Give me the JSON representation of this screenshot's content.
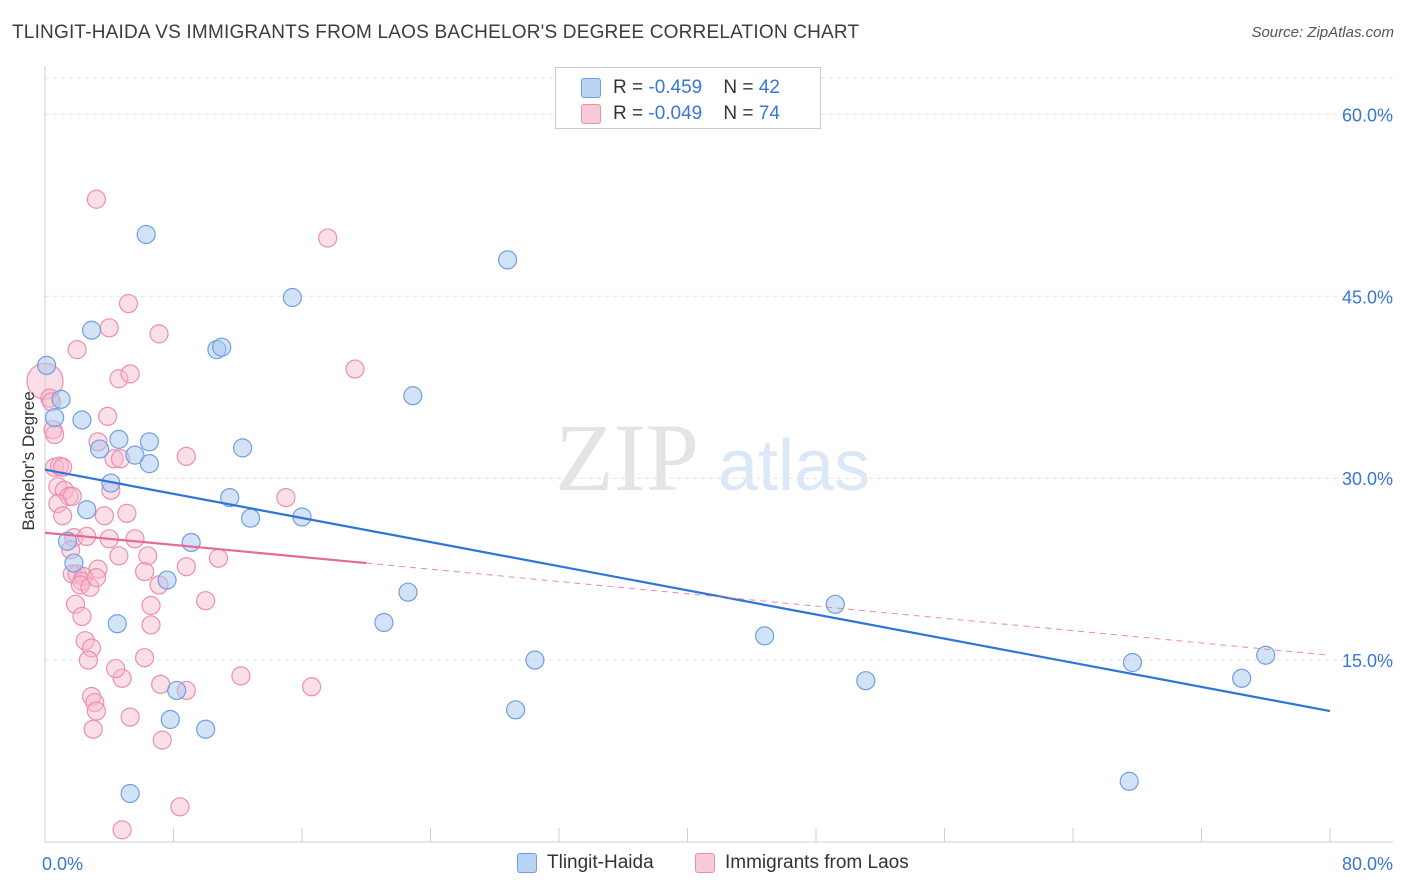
{
  "title": "TLINGIT-HAIDA VS IMMIGRANTS FROM LAOS BACHELOR'S DEGREE CORRELATION CHART",
  "source": "Source: ZipAtlas.com",
  "watermark": {
    "zip": "ZIP",
    "atlas": "atlas"
  },
  "stats_legend": [
    {
      "r_label": "R = ",
      "r_value": "-0.459",
      "n_label": "N = ",
      "n_value": "42"
    },
    {
      "r_label": "R = ",
      "r_value": "-0.049",
      "n_label": "N = ",
      "n_value": "74"
    }
  ],
  "chart_data": {
    "type": "scatter",
    "title": "TLINGIT-HAIDA VS IMMIGRANTS FROM LAOS BACHELOR'S DEGREE CORRELATION CHART",
    "xlabel": "",
    "ylabel": "Bachelor's Degree",
    "xlim": [
      0,
      80
    ],
    "ylim": [
      0,
      63
    ],
    "x_tick_labels": [
      "0.0%",
      "80.0%"
    ],
    "y_ticks": [
      15,
      30,
      45,
      60
    ],
    "y_tick_labels": [
      "15.0%",
      "30.0%",
      "45.0%",
      "60.0%"
    ],
    "grid": true,
    "legend_position": "bottom-center",
    "colors": {
      "tlingit_fill": "#a8c8f0",
      "tlingit_stroke": "#6f9fe0",
      "tlingit_line": "#2f74d6",
      "laos_fill": "#f6b8cb",
      "laos_stroke": "#ec8fae",
      "laos_line": "#e56a95",
      "axis_label": "#3a76d6"
    },
    "series": [
      {
        "name": "Tlingit-Haida",
        "color": "#6f9fe0",
        "trend": {
          "x": [
            0,
            80
          ],
          "y": [
            30.7,
            10.8
          ],
          "style": "solid"
        },
        "points": [
          [
            0.1,
            39.3
          ],
          [
            1.0,
            36.5
          ],
          [
            0.6,
            35.0
          ],
          [
            2.3,
            34.8
          ],
          [
            3.4,
            32.4
          ],
          [
            4.6,
            33.2
          ],
          [
            5.6,
            31.9
          ],
          [
            6.5,
            33.0
          ],
          [
            6.5,
            31.2
          ],
          [
            4.1,
            29.6
          ],
          [
            2.6,
            27.4
          ],
          [
            1.4,
            24.8
          ],
          [
            1.8,
            23.0
          ],
          [
            2.9,
            42.2
          ],
          [
            6.3,
            50.1
          ],
          [
            10.7,
            40.6
          ],
          [
            11.0,
            40.8
          ],
          [
            12.3,
            32.5
          ],
          [
            15.4,
            44.9
          ],
          [
            11.5,
            28.4
          ],
          [
            12.8,
            26.7
          ],
          [
            16.0,
            26.8
          ],
          [
            9.1,
            24.7
          ],
          [
            7.6,
            21.6
          ],
          [
            4.5,
            18.0
          ],
          [
            8.2,
            12.5
          ],
          [
            7.8,
            10.1
          ],
          [
            10.0,
            9.3
          ],
          [
            5.3,
            4.0
          ],
          [
            22.9,
            36.8
          ],
          [
            28.8,
            48.0
          ],
          [
            22.6,
            20.6
          ],
          [
            21.1,
            18.1
          ],
          [
            30.5,
            15.0
          ],
          [
            29.3,
            10.9
          ],
          [
            44.8,
            17.0
          ],
          [
            49.2,
            19.6
          ],
          [
            51.1,
            13.3
          ],
          [
            67.7,
            14.8
          ],
          [
            67.5,
            5.0
          ],
          [
            74.5,
            13.5
          ],
          [
            76.0,
            15.4
          ]
        ]
      },
      {
        "name": "Immigrants from Laos",
        "color": "#ec8fae",
        "trend": {
          "x": [
            0,
            20
          ],
          "y": [
            25.5,
            23.0
          ],
          "style": "solid",
          "dashed_x": [
            20,
            80
          ],
          "dashed_y": [
            23.0,
            15.4
          ]
        },
        "points": [
          [
            0.0,
            38.0
          ],
          [
            0.3,
            36.6
          ],
          [
            0.4,
            36.3
          ],
          [
            0.5,
            34.0
          ],
          [
            0.6,
            33.6
          ],
          [
            0.6,
            30.9
          ],
          [
            0.9,
            31.0
          ],
          [
            1.1,
            30.9
          ],
          [
            0.8,
            29.3
          ],
          [
            1.2,
            29.0
          ],
          [
            1.5,
            28.5
          ],
          [
            1.7,
            28.5
          ],
          [
            0.8,
            27.9
          ],
          [
            1.1,
            26.9
          ],
          [
            1.8,
            25.1
          ],
          [
            2.6,
            25.2
          ],
          [
            1.6,
            24.1
          ],
          [
            1.7,
            22.1
          ],
          [
            2.0,
            22.1
          ],
          [
            2.4,
            21.9
          ],
          [
            2.3,
            21.5
          ],
          [
            2.2,
            21.2
          ],
          [
            2.8,
            21.0
          ],
          [
            1.9,
            19.6
          ],
          [
            2.3,
            18.6
          ],
          [
            2.5,
            16.6
          ],
          [
            2.9,
            16.0
          ],
          [
            2.7,
            15.0
          ],
          [
            2.9,
            12.0
          ],
          [
            3.1,
            11.5
          ],
          [
            3.2,
            10.8
          ],
          [
            3.0,
            9.3
          ],
          [
            3.2,
            53.0
          ],
          [
            4.0,
            42.4
          ],
          [
            4.6,
            38.2
          ],
          [
            5.2,
            44.4
          ],
          [
            5.3,
            38.6
          ],
          [
            3.9,
            35.1
          ],
          [
            4.3,
            31.6
          ],
          [
            4.7,
            31.6
          ],
          [
            4.1,
            29.0
          ],
          [
            5.1,
            27.1
          ],
          [
            3.7,
            26.9
          ],
          [
            4.0,
            25.0
          ],
          [
            5.6,
            25.0
          ],
          [
            4.6,
            23.6
          ],
          [
            6.4,
            23.6
          ],
          [
            3.3,
            22.5
          ],
          [
            3.2,
            21.8
          ],
          [
            6.2,
            22.3
          ],
          [
            7.1,
            21.2
          ],
          [
            6.6,
            19.5
          ],
          [
            6.6,
            17.9
          ],
          [
            6.2,
            15.2
          ],
          [
            4.8,
            13.5
          ],
          [
            7.2,
            13.0
          ],
          [
            8.8,
            12.5
          ],
          [
            5.3,
            10.3
          ],
          [
            7.3,
            8.4
          ],
          [
            8.4,
            2.9
          ],
          [
            4.8,
            1.0
          ],
          [
            7.1,
            41.9
          ],
          [
            8.8,
            31.8
          ],
          [
            8.8,
            22.7
          ],
          [
            10.0,
            19.9
          ],
          [
            10.8,
            23.4
          ],
          [
            12.2,
            13.7
          ],
          [
            15.0,
            28.4
          ],
          [
            16.6,
            12.8
          ],
          [
            17.6,
            49.8
          ],
          [
            19.3,
            39.0
          ],
          [
            3.3,
            33.0
          ],
          [
            2.0,
            40.6
          ],
          [
            4.4,
            14.3
          ]
        ]
      }
    ]
  }
}
